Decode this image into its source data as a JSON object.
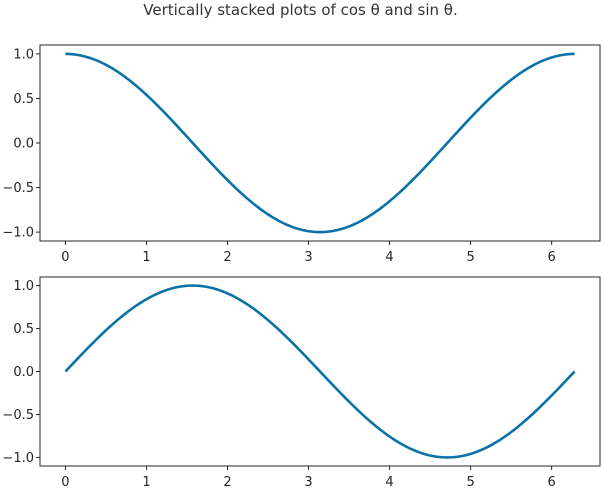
{
  "title": "Vertically stacked plots of cos θ and sin θ.",
  "colors": {
    "line": "#0a72a6",
    "axes": "#262626"
  },
  "chart_data": [
    {
      "type": "line",
      "function": "cos",
      "x_range": [
        0,
        6.283185
      ],
      "xlim": [
        -0.314,
        6.597
      ],
      "ylim": [
        -1.1,
        1.1
      ],
      "xticks": [
        0,
        1,
        2,
        3,
        4,
        5,
        6
      ],
      "yticks": [
        -1.0,
        -0.5,
        0.0,
        0.5,
        1.0
      ],
      "xtick_labels": [
        "0",
        "1",
        "2",
        "3",
        "4",
        "5",
        "6"
      ],
      "ytick_labels": [
        "−1.0",
        "−0.5",
        "0.0",
        "0.5",
        "1.0"
      ],
      "grid": false,
      "x": [
        0,
        0.785,
        1.571,
        2.356,
        3.142,
        3.927,
        4.712,
        5.498,
        6.283
      ],
      "y": [
        1.0,
        0.707,
        0.0,
        -0.707,
        -1.0,
        -0.707,
        0.0,
        0.707,
        1.0
      ]
    },
    {
      "type": "line",
      "function": "sin",
      "x_range": [
        0,
        6.283185
      ],
      "xlim": [
        -0.314,
        6.597
      ],
      "ylim": [
        -1.1,
        1.1
      ],
      "xticks": [
        0,
        1,
        2,
        3,
        4,
        5,
        6
      ],
      "yticks": [
        -1.0,
        -0.5,
        0.0,
        0.5,
        1.0
      ],
      "xtick_labels": [
        "0",
        "1",
        "2",
        "3",
        "4",
        "5",
        "6"
      ],
      "ytick_labels": [
        "−1.0",
        "−0.5",
        "0.0",
        "0.5",
        "1.0"
      ],
      "grid": false,
      "x": [
        0,
        0.785,
        1.571,
        2.356,
        3.142,
        3.927,
        4.712,
        5.498,
        6.283
      ],
      "y": [
        0.0,
        0.707,
        1.0,
        0.707,
        0.0,
        -0.707,
        -1.0,
        -0.707,
        0.0
      ]
    }
  ]
}
